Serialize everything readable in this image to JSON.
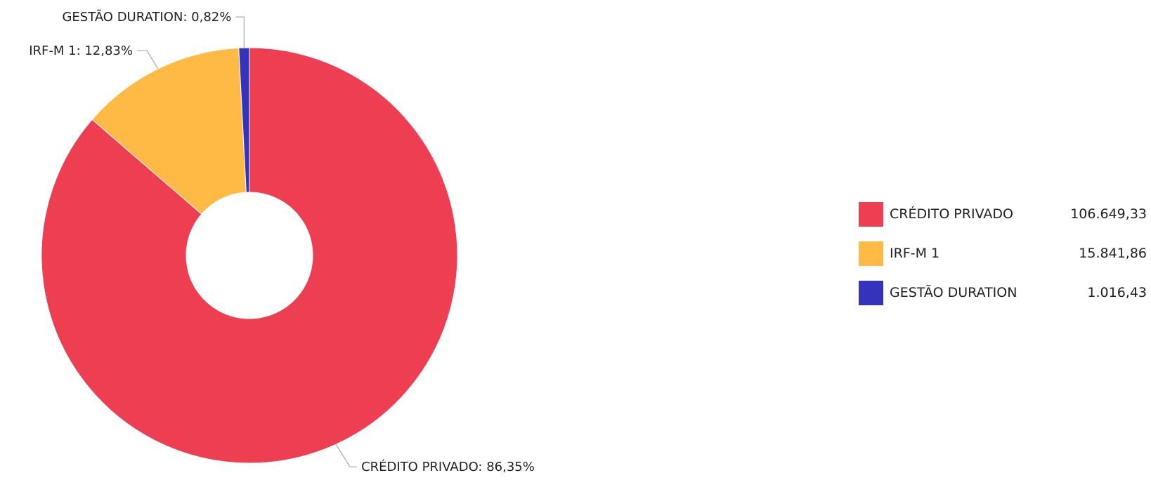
{
  "chart_data": {
    "type": "pie",
    "donut": true,
    "title": "",
    "slices": [
      {
        "name": "CRÉDITO PRIVADO",
        "value": 106649.33,
        "value_label": "106.649,33",
        "percent": 86.35,
        "label": "CRÉDITO PRIVADO: 86,35%",
        "color": "#EE3E52"
      },
      {
        "name": "IRF-M 1",
        "value": 15841.86,
        "value_label": "15.841,86",
        "percent": 12.83,
        "label": "IRF-M 1: 12,83%",
        "color": "#FFBA45"
      },
      {
        "name": "GESTÃO DURATION",
        "value": 1016.43,
        "value_label": "1.016,43",
        "percent": 0.82,
        "label": "GESTÃO DURATION: 0,82%",
        "color": "#3333BB"
      }
    ],
    "legend_placement": "right"
  }
}
